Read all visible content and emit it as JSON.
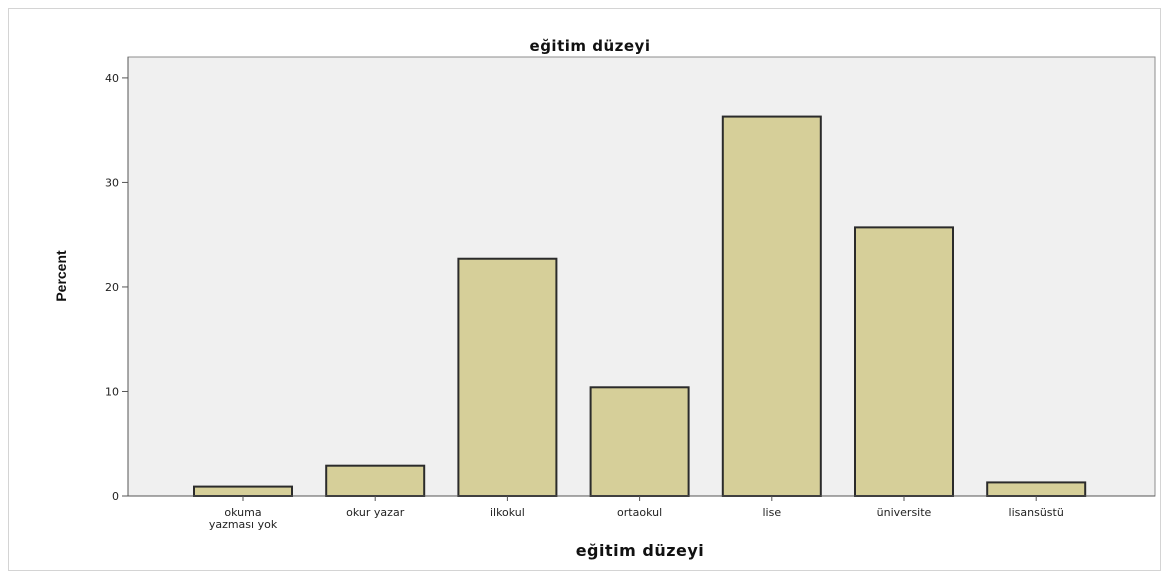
{
  "chart_data": {
    "type": "bar",
    "title": "eğitim düzeyi",
    "xlabel": "eğitim düzeyi",
    "ylabel": "Percent",
    "categories": [
      [
        "okuma",
        "yazması yok"
      ],
      [
        "okur yazar"
      ],
      [
        "ilkokul"
      ],
      [
        "ortaokul"
      ],
      [
        "lise"
      ],
      [
        "üniversite"
      ],
      [
        "lisansüstü"
      ]
    ],
    "values": [
      0.9,
      2.9,
      22.7,
      10.4,
      36.3,
      25.7,
      1.3
    ],
    "ylim": [
      0,
      42
    ],
    "yticks": [
      0,
      10,
      20,
      30,
      40
    ],
    "grid": false,
    "legend": "none",
    "colors": {
      "bar_fill": "#d6cf99",
      "bar_stroke": "#2b2b2b",
      "plot_bg": "#f0f0f0",
      "axis": "#555555"
    }
  }
}
